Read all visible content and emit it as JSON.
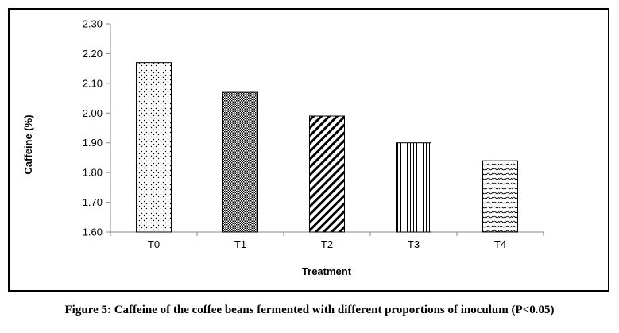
{
  "caption": "Figure 5: Caffeine of the coffee beans fermented with different proportions of inoculum (P<0.05)",
  "chart_data": {
    "type": "bar",
    "title": "",
    "xlabel": "Treatment",
    "ylabel": "Caffeine (%)",
    "categories": [
      "T0",
      "T1",
      "T2",
      "T3",
      "T4"
    ],
    "values": [
      2.17,
      2.07,
      1.99,
      1.9,
      1.84
    ],
    "ylim": [
      1.6,
      2.3
    ],
    "yticks": [
      "1.60",
      "1.70",
      "1.80",
      "1.90",
      "2.00",
      "2.10",
      "2.20",
      "2.30"
    ],
    "grid": false,
    "legend": "none",
    "bar_fill_patterns": [
      "dots",
      "crosshatch",
      "diagonal-stripes",
      "vertical-lines",
      "waves"
    ],
    "colors": {
      "bar_stroke": "#000000",
      "pattern": "#000000",
      "background": "#ffffff"
    }
  }
}
